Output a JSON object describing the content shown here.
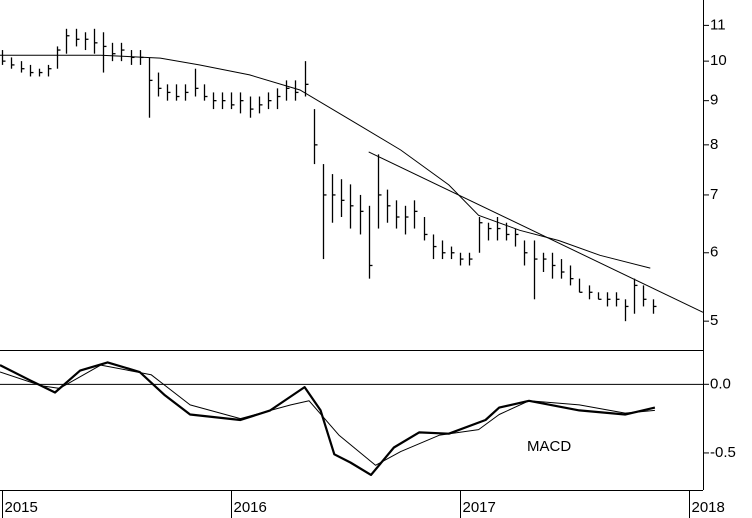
{
  "chart_data": [
    {
      "type": "ohlc",
      "log": true,
      "xlim": [
        2014.99,
        2018.06
      ],
      "ylim": [
        4.63,
        11.77
      ],
      "yticks": [
        5,
        6,
        7,
        8,
        9,
        10,
        11
      ],
      "color": "#000000",
      "x": [
        2015.0,
        2015.04,
        2015.08,
        2015.12,
        2015.16,
        2015.2,
        2015.24,
        2015.28,
        2015.32,
        2015.36,
        2015.4,
        2015.44,
        2015.48,
        2015.52,
        2015.56,
        2015.6,
        2015.64,
        2015.68,
        2015.72,
        2015.76,
        2015.8,
        2015.84,
        2015.88,
        2015.92,
        2015.96,
        2016.0,
        2016.04,
        2016.08,
        2016.12,
        2016.16,
        2016.2,
        2016.24,
        2016.28,
        2016.32,
        2016.36,
        2016.4,
        2016.44,
        2016.48,
        2016.52,
        2016.56,
        2016.6,
        2016.64,
        2016.68,
        2016.72,
        2016.76,
        2016.8,
        2016.84,
        2016.88,
        2016.92,
        2016.96,
        2017.0,
        2017.04,
        2017.08,
        2017.12,
        2017.16,
        2017.2,
        2017.24,
        2017.28,
        2017.32,
        2017.36,
        2017.4,
        2017.44,
        2017.48,
        2017.52,
        2017.56,
        2017.6,
        2017.64,
        2017.68,
        2017.72,
        2017.76,
        2017.8,
        2017.84
      ],
      "high": [
        10.3,
        10.1,
        10.0,
        9.9,
        9.8,
        9.9,
        10.4,
        10.9,
        10.9,
        10.8,
        10.9,
        10.8,
        10.5,
        10.5,
        10.3,
        10.3,
        10.1,
        9.7,
        9.4,
        9.4,
        9.4,
        9.8,
        9.4,
        9.2,
        9.2,
        9.2,
        9.2,
        9.1,
        9.1,
        9.2,
        9.3,
        9.5,
        9.5,
        10.0,
        8.8,
        7.6,
        7.4,
        7.3,
        7.2,
        7.0,
        6.8,
        7.8,
        7.1,
        6.9,
        6.8,
        6.9,
        6.6,
        6.3,
        6.2,
        6.1,
        6.0,
        6.0,
        6.6,
        6.5,
        6.6,
        6.5,
        6.4,
        6.2,
        6.2,
        6.0,
        6.0,
        5.9,
        5.8,
        5.6,
        5.5,
        5.4,
        5.4,
        5.4,
        5.3,
        5.6,
        5.5,
        5.3
      ],
      "low": [
        9.9,
        9.8,
        9.7,
        9.6,
        9.6,
        9.6,
        9.8,
        10.2,
        10.4,
        10.3,
        10.2,
        9.7,
        10.0,
        10.0,
        9.9,
        9.9,
        8.6,
        9.1,
        9.0,
        9.0,
        9.0,
        9.1,
        9.0,
        8.8,
        8.8,
        8.8,
        8.7,
        8.6,
        8.7,
        8.8,
        8.8,
        9.0,
        9.0,
        9.1,
        7.6,
        5.9,
        6.5,
        6.6,
        6.4,
        6.3,
        5.6,
        6.4,
        6.5,
        6.4,
        6.3,
        6.4,
        6.2,
        5.9,
        5.9,
        5.9,
        5.8,
        5.8,
        6.0,
        6.2,
        6.2,
        6.2,
        6.1,
        5.8,
        5.3,
        5.7,
        5.6,
        5.6,
        5.5,
        5.4,
        5.3,
        5.3,
        5.2,
        5.2,
        5.0,
        5.1,
        5.2,
        5.1
      ],
      "close": [
        10.0,
        9.9,
        9.8,
        9.7,
        9.7,
        9.8,
        10.3,
        10.7,
        10.6,
        10.6,
        10.5,
        10.4,
        10.2,
        10.3,
        10.1,
        10.1,
        9.5,
        9.3,
        9.2,
        9.1,
        9.2,
        9.3,
        9.1,
        9.0,
        9.0,
        8.9,
        9.0,
        8.8,
        8.9,
        9.0,
        9.1,
        9.3,
        9.2,
        9.4,
        8.0,
        7.0,
        7.0,
        6.9,
        6.8,
        6.7,
        5.8,
        7.0,
        6.8,
        6.6,
        6.6,
        6.7,
        6.3,
        6.1,
        6.0,
        6.0,
        5.9,
        5.9,
        6.5,
        6.4,
        6.4,
        6.3,
        6.3,
        6.0,
        5.9,
        5.9,
        5.8,
        5.7,
        5.6,
        5.4,
        5.4,
        5.3,
        5.3,
        5.3,
        5.2,
        5.5,
        5.3,
        5.2
      ],
      "lines": [
        {
          "x": [
            2014.99,
            2015.21,
            2015.43,
            2015.69,
            2015.86,
            2016.08,
            2016.3,
            2016.52,
            2016.74,
            2016.95,
            2017.08,
            2017.26,
            2017.43,
            2017.61,
            2017.83
          ],
          "values": [
            10.16,
            10.16,
            10.16,
            10.08,
            9.9,
            9.64,
            9.26,
            8.55,
            7.89,
            7.19,
            6.63,
            6.37,
            6.2,
            5.96,
            5.76
          ]
        },
        {
          "x": [
            2016.6,
            2018.06
          ],
          "values": [
            7.85,
            5.12
          ]
        }
      ]
    },
    {
      "type": "line",
      "xlim": [
        2014.99,
        2018.06
      ],
      "ylim": [
        -0.77,
        0.25
      ],
      "xticks": [
        2015,
        2016,
        2017,
        2018
      ],
      "yticks": [
        {
          "value": 0,
          "label": "0.0"
        },
        -0.5
      ],
      "annotation": "MACD",
      "series": [
        {
          "color": "#000000",
          "x": [
            2014.99,
            2015.12,
            2015.23,
            2015.34,
            2015.46,
            2015.6,
            2015.71,
            2015.82,
            2016.04,
            2016.17,
            2016.32,
            2016.39,
            2016.45,
            2016.52,
            2016.61,
            2016.71,
            2016.82,
            2016.95,
            2017.11,
            2017.17,
            2017.3,
            2017.52,
            2017.72,
            2017.85
          ],
          "values": [
            0.14,
            0.03,
            -0.06,
            0.1,
            0.16,
            0.09,
            -0.08,
            -0.22,
            -0.26,
            -0.19,
            -0.02,
            -0.19,
            -0.51,
            -0.57,
            -0.66,
            -0.46,
            -0.35,
            -0.36,
            -0.26,
            -0.17,
            -0.12,
            -0.19,
            -0.22,
            -0.17
          ]
        },
        {
          "color": "#000000",
          "x": [
            2014.99,
            2015.17,
            2015.25,
            2015.43,
            2015.65,
            2015.82,
            2016.04,
            2016.26,
            2016.34,
            2016.47,
            2016.63,
            2016.74,
            2016.91,
            2017.08,
            2017.17,
            2017.3,
            2017.52,
            2017.72,
            2017.85
          ],
          "values": [
            0.09,
            -0.01,
            -0.03,
            0.14,
            0.07,
            -0.15,
            -0.25,
            -0.15,
            -0.12,
            -0.37,
            -0.59,
            -0.49,
            -0.37,
            -0.33,
            -0.22,
            -0.12,
            -0.15,
            -0.21,
            -0.19
          ]
        }
      ]
    }
  ]
}
